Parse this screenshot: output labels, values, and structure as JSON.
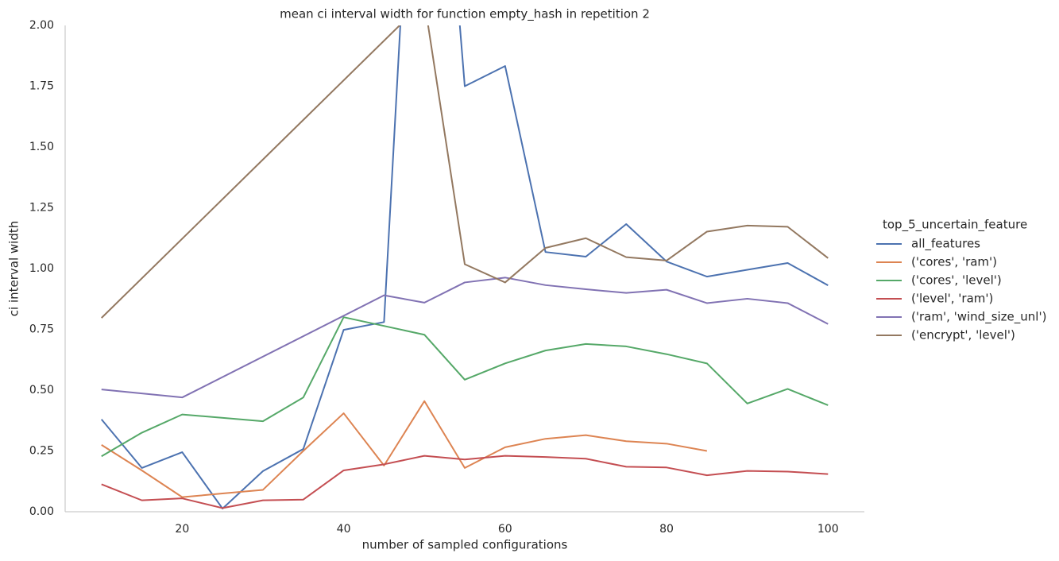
{
  "chart_data": {
    "type": "line",
    "title": "mean ci interval width for function empty_hash in repetition 2",
    "x_label": "number of sampled configurations",
    "y_label": "ci interval width",
    "legend_title": "top_5_uncertain_feature",
    "legend_position": "right",
    "xlim": [
      5.5,
      104.5
    ],
    "ylim": [
      0,
      2
    ],
    "xticks": [
      20,
      40,
      60,
      80,
      100
    ],
    "yticks": [
      {
        "value": 0,
        "label": "0.00"
      },
      {
        "value": 0.25,
        "label": "0.25"
      },
      {
        "value": 0.5,
        "label": "0.50"
      },
      {
        "value": 0.75,
        "label": "0.75"
      },
      {
        "value": 1,
        "label": "1.00"
      },
      {
        "value": 1.25,
        "label": "1.25"
      },
      {
        "value": 1.5,
        "label": "1.50"
      },
      {
        "value": 1.75,
        "label": "1.75"
      },
      {
        "value": 2,
        "label": "2.00"
      }
    ],
    "series": [
      {
        "name": "all_features",
        "color": "#4c72b0",
        "x": [
          10,
          15,
          20,
          25,
          30,
          35,
          40,
          45,
          50,
          55,
          60,
          65,
          70,
          75,
          80,
          85,
          90,
          95,
          100
        ],
        "values": [
          0.38,
          0.18,
          0.245,
          0.013,
          0.167,
          0.258,
          0.748,
          0.78,
          3.8,
          1.75,
          1.833,
          1.068,
          1.049,
          1.183,
          1.029,
          0.967,
          0.995,
          1.023,
          0.931
        ]
      },
      {
        "name": "('cores', 'ram')",
        "color": "#dd8452",
        "x": [
          10,
          15,
          20,
          25,
          30,
          35,
          40,
          45,
          50,
          55,
          60,
          65,
          70,
          75,
          80,
          85
        ],
        "values": [
          0.275,
          0.17,
          0.06,
          0.075,
          0.09,
          0.25,
          0.405,
          0.19,
          0.455,
          0.18,
          0.265,
          0.3,
          0.315,
          0.29,
          0.28,
          0.25
        ]
      },
      {
        "name": "('cores', 'level')",
        "color": "#55a868",
        "x": [
          10,
          15,
          20,
          30,
          35,
          40,
          50,
          55,
          60,
          65,
          70,
          75,
          80,
          85,
          90,
          95,
          100
        ],
        "values": [
          0.228,
          0.325,
          0.4,
          0.372,
          0.47,
          0.8,
          0.728,
          0.543,
          0.61,
          0.663,
          0.69,
          0.68,
          0.648,
          0.61,
          0.445,
          0.505,
          0.438
        ]
      },
      {
        "name": "('level', 'ram')",
        "color": "#c44e52",
        "x": [
          10,
          15,
          20,
          25,
          30,
          35,
          40,
          45,
          50,
          55,
          60,
          65,
          70,
          75,
          80,
          85,
          90,
          95,
          100
        ],
        "values": [
          0.113,
          0.047,
          0.055,
          0.015,
          0.047,
          0.05,
          0.17,
          0.195,
          0.23,
          0.215,
          0.23,
          0.225,
          0.218,
          0.185,
          0.182,
          0.15,
          0.168,
          0.165,
          0.155
        ]
      },
      {
        "name": "('ram', 'wind_size_unl')",
        "color": "#8172b3",
        "x": [
          10,
          20,
          45,
          50,
          55,
          60,
          65,
          70,
          75,
          80,
          85,
          90,
          95,
          100
        ],
        "values": [
          0.503,
          0.47,
          0.89,
          0.86,
          0.943,
          0.963,
          0.932,
          0.915,
          0.9,
          0.913,
          0.858,
          0.876,
          0.858,
          0.772
        ]
      },
      {
        "name": "('encrypt', 'level')",
        "color": "#937860",
        "x": [
          10,
          50,
          55,
          60,
          65,
          70,
          75,
          80,
          85,
          90,
          95,
          100
        ],
        "values": [
          0.797,
          2.1,
          1.018,
          0.943,
          1.085,
          1.125,
          1.047,
          1.033,
          1.152,
          1.177,
          1.172,
          1.043
        ]
      }
    ]
  }
}
